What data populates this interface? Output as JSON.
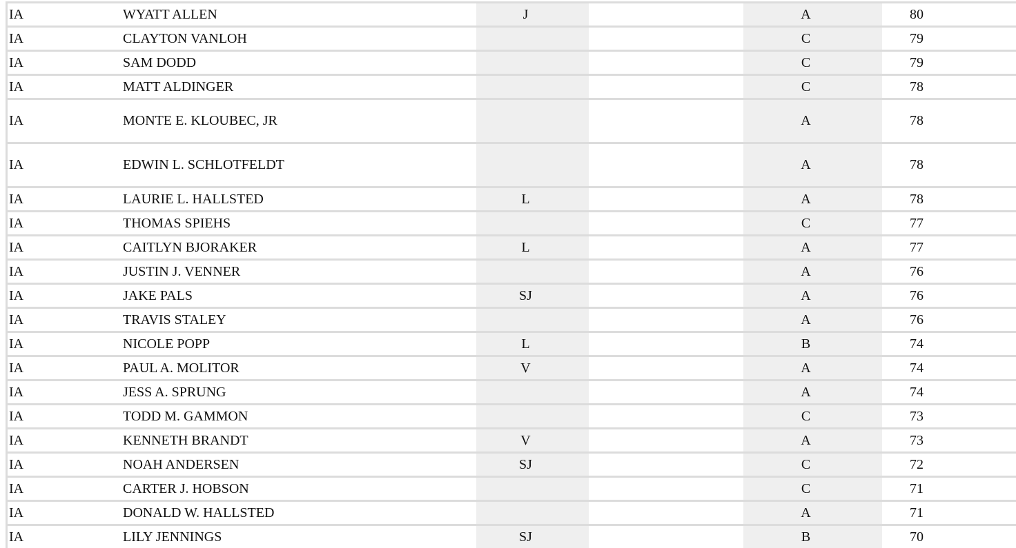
{
  "rows": [
    {
      "state": "IA",
      "name": "WYATT ALLEN",
      "code": "J",
      "class": "A",
      "score": "80"
    },
    {
      "state": "IA",
      "name": "CLAYTON VANLOH",
      "code": "",
      "class": "C",
      "score": "79"
    },
    {
      "state": "IA",
      "name": "SAM DODD",
      "code": "",
      "class": "C",
      "score": "79"
    },
    {
      "state": "IA",
      "name": "MATT ALDINGER",
      "code": "",
      "class": "C",
      "score": "78"
    },
    {
      "state": "IA",
      "name": "MONTE E. KLOUBEC, JR",
      "code": "",
      "class": "A",
      "score": "78"
    },
    {
      "state": "IA",
      "name": "EDWIN L. SCHLOTFELDT",
      "code": "",
      "class": "A",
      "score": "78"
    },
    {
      "state": "IA",
      "name": "LAURIE L. HALLSTED",
      "code": "L",
      "class": "A",
      "score": "78"
    },
    {
      "state": "IA",
      "name": "THOMAS SPIEHS",
      "code": "",
      "class": "C",
      "score": "77"
    },
    {
      "state": "IA",
      "name": "CAITLYN BJORAKER",
      "code": "L",
      "class": "A",
      "score": "77"
    },
    {
      "state": "IA",
      "name": "JUSTIN J. VENNER",
      "code": "",
      "class": "A",
      "score": "76"
    },
    {
      "state": "IA",
      "name": "JAKE PALS",
      "code": "SJ",
      "class": "A",
      "score": "76"
    },
    {
      "state": "IA",
      "name": "TRAVIS STALEY",
      "code": "",
      "class": "A",
      "score": "76"
    },
    {
      "state": "IA",
      "name": "NICOLE POPP",
      "code": "L",
      "class": "B",
      "score": "74"
    },
    {
      "state": "IA",
      "name": "PAUL A. MOLITOR",
      "code": "V",
      "class": "A",
      "score": "74"
    },
    {
      "state": "IA",
      "name": "JESS A. SPRUNG",
      "code": "",
      "class": "A",
      "score": "74"
    },
    {
      "state": "IA",
      "name": "TODD M. GAMMON",
      "code": "",
      "class": "C",
      "score": "73"
    },
    {
      "state": "IA",
      "name": "KENNETH BRANDT",
      "code": "V",
      "class": "A",
      "score": "73"
    },
    {
      "state": "IA",
      "name": "NOAH ANDERSEN",
      "code": "SJ",
      "class": "C",
      "score": "72"
    },
    {
      "state": "IA",
      "name": "CARTER J. HOBSON",
      "code": "",
      "class": "C",
      "score": "71"
    },
    {
      "state": "IA",
      "name": "DONALD W. HALLSTED",
      "code": "",
      "class": "A",
      "score": "71"
    },
    {
      "state": "IA",
      "name": "LILY JENNINGS",
      "code": "SJ",
      "class": "B",
      "score": "70"
    }
  ]
}
